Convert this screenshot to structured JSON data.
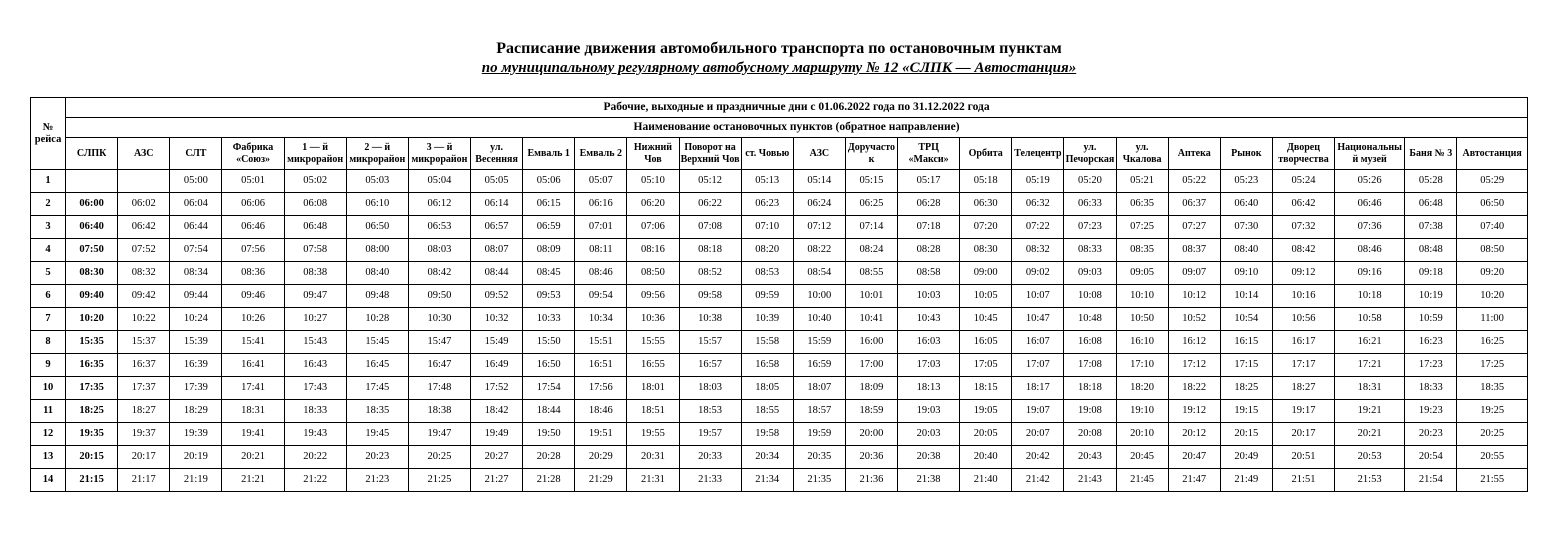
{
  "title": "Расписание движения автомобильного транспорта по остановочным пунктам",
  "subtitle": "по муниципальному регулярному автобусному маршруту № 12 «СЛПК — Автостанция»",
  "banner1": "Рабочие, выходные и праздничные дни с 01.06.2022 года по 31.12.2022 года",
  "banner2": "Наименование остановочных пунктов (обратное направление)",
  "row_num_head": "№ рейса",
  "stops": [
    "СЛПК",
    "АЗС",
    "СЛТ",
    "Фабрика «Союз»",
    "1 — й микрорайон",
    "2 — й микрорайон",
    "3 — й микрорайон",
    "ул. Весенняя",
    "Емваль 1",
    "Емваль 2",
    "Нижний Чов",
    "Поворот на Верхний Чов",
    "ст. Човью",
    "АЗС",
    "Доручасток",
    "ТРЦ «Макси»",
    "Орбита",
    "Телецентр",
    "ул. Печорская",
    "ул. Чкалова",
    "Аптека",
    "Рынок",
    "Дворец творчества",
    "Национальный музей",
    "Баня № 3",
    "Автостанция"
  ],
  "rows": [
    {
      "n": "1",
      "t": [
        "",
        "",
        "05:00",
        "05:01",
        "05:02",
        "05:03",
        "05:04",
        "05:05",
        "05:06",
        "05:07",
        "05:10",
        "05:12",
        "05:13",
        "05:14",
        "05:15",
        "05:17",
        "05:18",
        "05:19",
        "05:20",
        "05:21",
        "05:22",
        "05:23",
        "05:24",
        "05:26",
        "05:28",
        "05:29"
      ]
    },
    {
      "n": "2",
      "t": [
        "06:00",
        "06:02",
        "06:04",
        "06:06",
        "06:08",
        "06:10",
        "06:12",
        "06:14",
        "06:15",
        "06:16",
        "06:20",
        "06:22",
        "06:23",
        "06:24",
        "06:25",
        "06:28",
        "06:30",
        "06:32",
        "06:33",
        "06:35",
        "06:37",
        "06:40",
        "06:42",
        "06:46",
        "06:48",
        "06:50"
      ]
    },
    {
      "n": "3",
      "t": [
        "06:40",
        "06:42",
        "06:44",
        "06:46",
        "06:48",
        "06:50",
        "06:53",
        "06:57",
        "06:59",
        "07:01",
        "07:06",
        "07:08",
        "07:10",
        "07:12",
        "07:14",
        "07:18",
        "07:20",
        "07:22",
        "07:23",
        "07:25",
        "07:27",
        "07:30",
        "07:32",
        "07:36",
        "07:38",
        "07:40"
      ]
    },
    {
      "n": "4",
      "t": [
        "07:50",
        "07:52",
        "07:54",
        "07:56",
        "07:58",
        "08:00",
        "08:03",
        "08:07",
        "08:09",
        "08:11",
        "08:16",
        "08:18",
        "08:20",
        "08:22",
        "08:24",
        "08:28",
        "08:30",
        "08:32",
        "08:33",
        "08:35",
        "08:37",
        "08:40",
        "08:42",
        "08:46",
        "08:48",
        "08:50"
      ]
    },
    {
      "n": "5",
      "t": [
        "08:30",
        "08:32",
        "08:34",
        "08:36",
        "08:38",
        "08:40",
        "08:42",
        "08:44",
        "08:45",
        "08:46",
        "08:50",
        "08:52",
        "08:53",
        "08:54",
        "08:55",
        "08:58",
        "09:00",
        "09:02",
        "09:03",
        "09:05",
        "09:07",
        "09:10",
        "09:12",
        "09:16",
        "09:18",
        "09:20"
      ]
    },
    {
      "n": "6",
      "t": [
        "09:40",
        "09:42",
        "09:44",
        "09:46",
        "09:47",
        "09:48",
        "09:50",
        "09:52",
        "09:53",
        "09:54",
        "09:56",
        "09:58",
        "09:59",
        "10:00",
        "10:01",
        "10:03",
        "10:05",
        "10:07",
        "10:08",
        "10:10",
        "10:12",
        "10:14",
        "10:16",
        "10:18",
        "10:19",
        "10:20"
      ]
    },
    {
      "n": "7",
      "t": [
        "10:20",
        "10:22",
        "10:24",
        "10:26",
        "10:27",
        "10:28",
        "10:30",
        "10:32",
        "10:33",
        "10:34",
        "10:36",
        "10:38",
        "10:39",
        "10:40",
        "10:41",
        "10:43",
        "10:45",
        "10:47",
        "10:48",
        "10:50",
        "10:52",
        "10:54",
        "10:56",
        "10:58",
        "10:59",
        "11:00"
      ]
    },
    {
      "n": "8",
      "t": [
        "15:35",
        "15:37",
        "15:39",
        "15:41",
        "15:43",
        "15:45",
        "15:47",
        "15:49",
        "15:50",
        "15:51",
        "15:55",
        "15:57",
        "15:58",
        "15:59",
        "16:00",
        "16:03",
        "16:05",
        "16:07",
        "16:08",
        "16:10",
        "16:12",
        "16:15",
        "16:17",
        "16:21",
        "16:23",
        "16:25"
      ]
    },
    {
      "n": "9",
      "t": [
        "16:35",
        "16:37",
        "16:39",
        "16:41",
        "16:43",
        "16:45",
        "16:47",
        "16:49",
        "16:50",
        "16:51",
        "16:55",
        "16:57",
        "16:58",
        "16:59",
        "17:00",
        "17:03",
        "17:05",
        "17:07",
        "17:08",
        "17:10",
        "17:12",
        "17:15",
        "17:17",
        "17:21",
        "17:23",
        "17:25"
      ]
    },
    {
      "n": "10",
      "t": [
        "17:35",
        "17:37",
        "17:39",
        "17:41",
        "17:43",
        "17:45",
        "17:48",
        "17:52",
        "17:54",
        "17:56",
        "18:01",
        "18:03",
        "18:05",
        "18:07",
        "18:09",
        "18:13",
        "18:15",
        "18:17",
        "18:18",
        "18:20",
        "18:22",
        "18:25",
        "18:27",
        "18:31",
        "18:33",
        "18:35"
      ]
    },
    {
      "n": "11",
      "t": [
        "18:25",
        "18:27",
        "18:29",
        "18:31",
        "18:33",
        "18:35",
        "18:38",
        "18:42",
        "18:44",
        "18:46",
        "18:51",
        "18:53",
        "18:55",
        "18:57",
        "18:59",
        "19:03",
        "19:05",
        "19:07",
        "19:08",
        "19:10",
        "19:12",
        "19:15",
        "19:17",
        "19:21",
        "19:23",
        "19:25"
      ]
    },
    {
      "n": "12",
      "t": [
        "19:35",
        "19:37",
        "19:39",
        "19:41",
        "19:43",
        "19:45",
        "19:47",
        "19:49",
        "19:50",
        "19:51",
        "19:55",
        "19:57",
        "19:58",
        "19:59",
        "20:00",
        "20:03",
        "20:05",
        "20:07",
        "20:08",
        "20:10",
        "20:12",
        "20:15",
        "20:17",
        "20:21",
        "20:23",
        "20:25"
      ]
    },
    {
      "n": "13",
      "t": [
        "20:15",
        "20:17",
        "20:19",
        "20:21",
        "20:22",
        "20:23",
        "20:25",
        "20:27",
        "20:28",
        "20:29",
        "20:31",
        "20:33",
        "20:34",
        "20:35",
        "20:36",
        "20:38",
        "20:40",
        "20:42",
        "20:43",
        "20:45",
        "20:47",
        "20:49",
        "20:51",
        "20:53",
        "20:54",
        "20:55"
      ]
    },
    {
      "n": "14",
      "t": [
        "21:15",
        "21:17",
        "21:19",
        "21:21",
        "21:22",
        "21:23",
        "21:25",
        "21:27",
        "21:28",
        "21:29",
        "21:31",
        "21:33",
        "21:34",
        "21:35",
        "21:36",
        "21:38",
        "21:40",
        "21:42",
        "21:43",
        "21:45",
        "21:47",
        "21:49",
        "21:51",
        "21:53",
        "21:54",
        "21:55"
      ]
    }
  ],
  "wide_cols": [
    3,
    4,
    5,
    6,
    11,
    15,
    22
  ],
  "xwide_cols": [
    23,
    25
  ]
}
